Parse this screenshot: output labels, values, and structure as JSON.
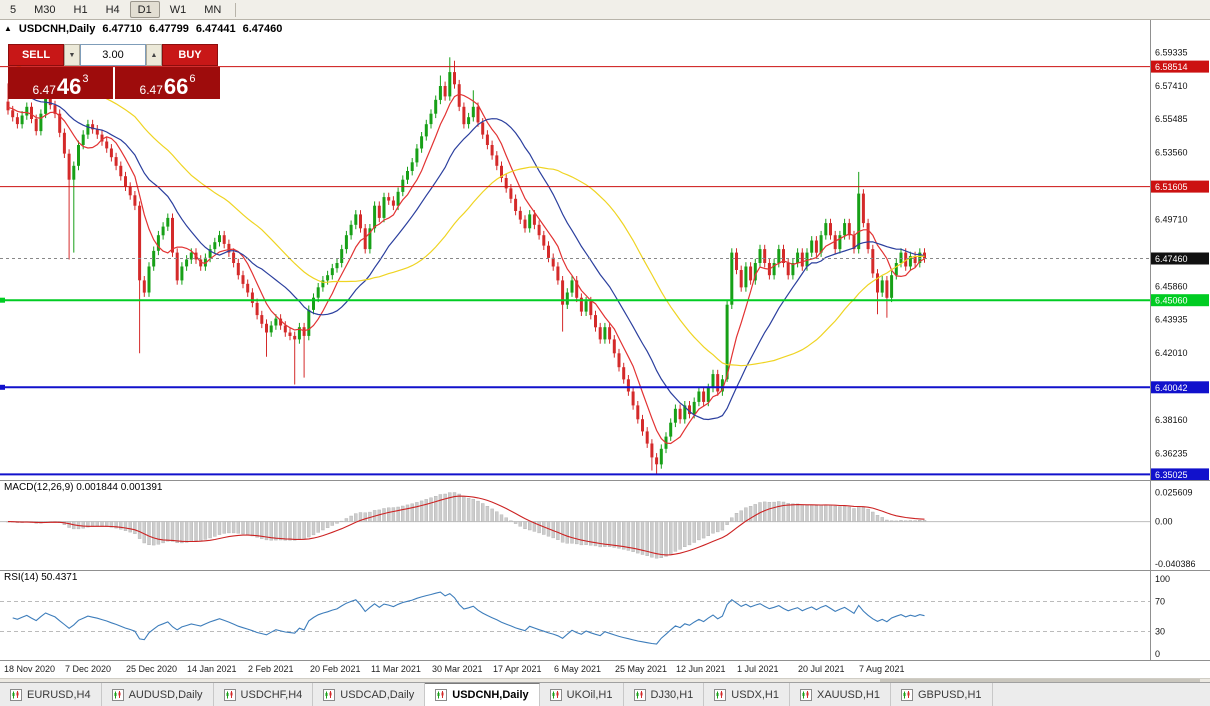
{
  "colors": {
    "up": "#17a017",
    "down": "#d42a2a",
    "macd_hist": "#cccccc",
    "macd_hist_stroke": "#b0b0b0",
    "macd_signal": "#cc2222",
    "rsi_line": "#3d7dbb",
    "badge_current": "#111111",
    "axis_text": "#111111"
  },
  "toolbar": {
    "timeframes": [
      "5",
      "M30",
      "H1",
      "H4",
      "D1",
      "W1",
      "MN"
    ],
    "active": "D1"
  },
  "info": {
    "symbol_period": "USDCNH,Daily",
    "open": "6.47710",
    "high": "6.47799",
    "low": "6.47441",
    "close": "6.47460"
  },
  "icons": {
    "symbol_marker": "▲",
    "spinner_up": "▲",
    "spinner_down": "▼"
  },
  "trade": {
    "sell_label": "SELL",
    "buy_label": "BUY",
    "lot_value": "3.00",
    "bid": {
      "prefix": "6.47",
      "big": "46",
      "sup": "3"
    },
    "ask": {
      "prefix": "6.47",
      "big": "66",
      "sup": "6"
    }
  },
  "price_axis": {
    "ticks": [
      "6.59335",
      "6.57410",
      "6.55485",
      "6.53560",
      "6.49710",
      "6.45860",
      "6.43935",
      "6.42010",
      "6.38160",
      "6.36235"
    ],
    "current": {
      "label": "6.47460",
      "price": 6.4746
    }
  },
  "levels": [
    {
      "price": 6.58514,
      "label": "6.58514",
      "color": "#cc1111",
      "lw": 1,
      "marker": false
    },
    {
      "price": 6.51605,
      "label": "6.51605",
      "color": "#cc1111",
      "lw": 1,
      "marker": false
    },
    {
      "price": 6.4506,
      "label": "6.45060",
      "color": "#00cc22",
      "lw": 2,
      "marker": true
    },
    {
      "price": 6.40042,
      "label": "6.40042",
      "color": "#1111cc",
      "lw": 2,
      "marker": true
    },
    {
      "price": 6.35025,
      "label": "6.35025",
      "color": "#1111cc",
      "lw": 2,
      "marker": false
    }
  ],
  "macd": {
    "label": "MACD(12,26,9) 0.001844 0.001391",
    "fast": 12,
    "slow": 26,
    "signal": 9,
    "ylim": [
      -0.0425,
      0.0366
    ],
    "axis": [
      "0.025609",
      "0.00",
      "-0.040386"
    ]
  },
  "rsi": {
    "label": "RSI(14) 50.4371",
    "period": 14,
    "ylim": [
      -8,
      112
    ],
    "axis": [
      "100",
      "70",
      "30",
      "0"
    ],
    "levels": [
      70,
      30
    ]
  },
  "tabs": {
    "items": [
      "EURUSD,H4",
      "AUDUSD,Daily",
      "USDCHF,H4",
      "USDCAD,Daily",
      "USDCNH,Daily",
      "UKOil,H1",
      "DJ30,H1",
      "USDX,H1",
      "XAUUSD,H1",
      "GBPUSD,H1"
    ],
    "active": "USDCNH,Daily"
  },
  "chart_data": {
    "type": "candlestick",
    "symbol": "USDCNH",
    "timeframe": "Daily",
    "x_labels": [
      "18 Nov 2020",
      "7 Dec 2020",
      "25 Dec 2020",
      "14 Jan 2021",
      "2 Feb 2021",
      "20 Feb 2021",
      "11 Mar 2021",
      "30 Mar 2021",
      "17 Apr 2021",
      "6 May 2021",
      "25 May 2021",
      "12 Jun 2021",
      "1 Jul 2021",
      "20 Jul 2021",
      "7 Aug 2021"
    ],
    "bars_per_label": 13,
    "x_step": 4.7,
    "x_first": 8,
    "ylim": [
      6.347,
      6.612
    ],
    "first_open": 6.565,
    "default_wick": 0.0025,
    "closes": [
      6.56,
      6.556,
      6.552,
      6.557,
      6.562,
      6.555,
      6.548,
      6.558,
      6.568,
      6.563,
      6.558,
      6.547,
      6.535,
      6.52,
      6.528,
      6.54,
      6.546,
      6.552,
      6.549,
      6.546,
      6.542,
      6.538,
      6.533,
      6.528,
      6.522,
      6.516,
      6.511,
      6.505,
      6.462,
      6.455,
      6.47,
      6.479,
      6.488,
      6.493,
      6.498,
      6.478,
      6.462,
      6.47,
      6.474,
      6.478,
      6.474,
      6.47,
      6.475,
      6.48,
      6.484,
      6.488,
      6.483,
      6.478,
      6.472,
      6.465,
      6.46,
      6.455,
      6.449,
      6.442,
      6.437,
      6.432,
      6.436,
      6.44,
      6.436,
      6.432,
      6.43,
      6.428,
      6.435,
      6.43,
      6.445,
      6.452,
      6.458,
      6.462,
      6.465,
      6.469,
      6.472,
      6.48,
      6.488,
      6.494,
      6.5,
      6.492,
      6.48,
      6.492,
      6.505,
      6.498,
      6.51,
      6.508,
      6.505,
      6.513,
      6.52,
      6.525,
      6.53,
      6.538,
      6.545,
      6.552,
      6.558,
      6.566,
      6.574,
      6.568,
      6.582,
      6.575,
      6.562,
      6.552,
      6.556,
      6.562,
      6.553,
      6.546,
      6.54,
      6.534,
      6.528,
      6.521,
      6.515,
      6.509,
      6.502,
      6.497,
      6.492,
      6.5,
      6.494,
      6.488,
      6.482,
      6.475,
      6.47,
      6.462,
      6.448,
      6.455,
      6.462,
      6.452,
      6.444,
      6.45,
      6.442,
      6.435,
      6.428,
      6.435,
      6.428,
      6.42,
      6.412,
      6.405,
      6.398,
      6.39,
      6.382,
      6.375,
      6.368,
      6.36,
      6.356,
      6.365,
      6.372,
      6.38,
      6.388,
      6.382,
      6.39,
      6.385,
      6.392,
      6.398,
      6.392,
      6.4,
      6.408,
      6.398,
      6.405,
      6.448,
      6.478,
      6.468,
      6.458,
      6.47,
      6.462,
      6.472,
      6.48,
      6.472,
      6.465,
      6.472,
      6.48,
      6.472,
      6.465,
      6.472,
      6.478,
      6.47,
      6.478,
      6.485,
      6.478,
      6.488,
      6.495,
      6.488,
      6.48,
      6.488,
      6.495,
      6.488,
      6.48,
      6.512,
      6.495,
      6.48,
      6.466,
      6.455,
      6.462,
      6.452,
      6.465,
      6.472,
      6.478,
      6.47,
      6.476,
      6.472,
      6.478,
      6.4746
    ],
    "wick_overrides": {
      "0": {
        "high": 6.5755
      },
      "8": {
        "high": 6.5745
      },
      "13": {
        "low": 6.474
      },
      "14": {
        "low": 6.478
      },
      "28": {
        "low": 6.42
      },
      "55": {
        "low": 6.418
      },
      "61": {
        "low": 6.402
      },
      "63": {
        "low": 6.406
      },
      "92": {
        "high": 6.58
      },
      "94": {
        "high": 6.5905
      },
      "95": {
        "high": 6.5885
      },
      "99": {
        "high": 6.5715
      },
      "118": {
        "low": 6.4325
      },
      "137": {
        "low": 6.3525
      },
      "138": {
        "low": 6.3505
      },
      "153": {
        "low": 6.4035
      },
      "181": {
        "high": 6.5245
      },
      "185": {
        "low": 6.4425
      },
      "187": {
        "low": 6.4405
      }
    },
    "ma": [
      {
        "name": "fast",
        "period": 7,
        "color": "#e23333",
        "prepad": 6.562
      },
      {
        "name": "medium",
        "period": 18,
        "color": "#2b3f9e",
        "prepad": 6.572
      },
      {
        "name": "slow",
        "period": 40,
        "color": "#efd422",
        "prepad": 6.588
      }
    ]
  }
}
